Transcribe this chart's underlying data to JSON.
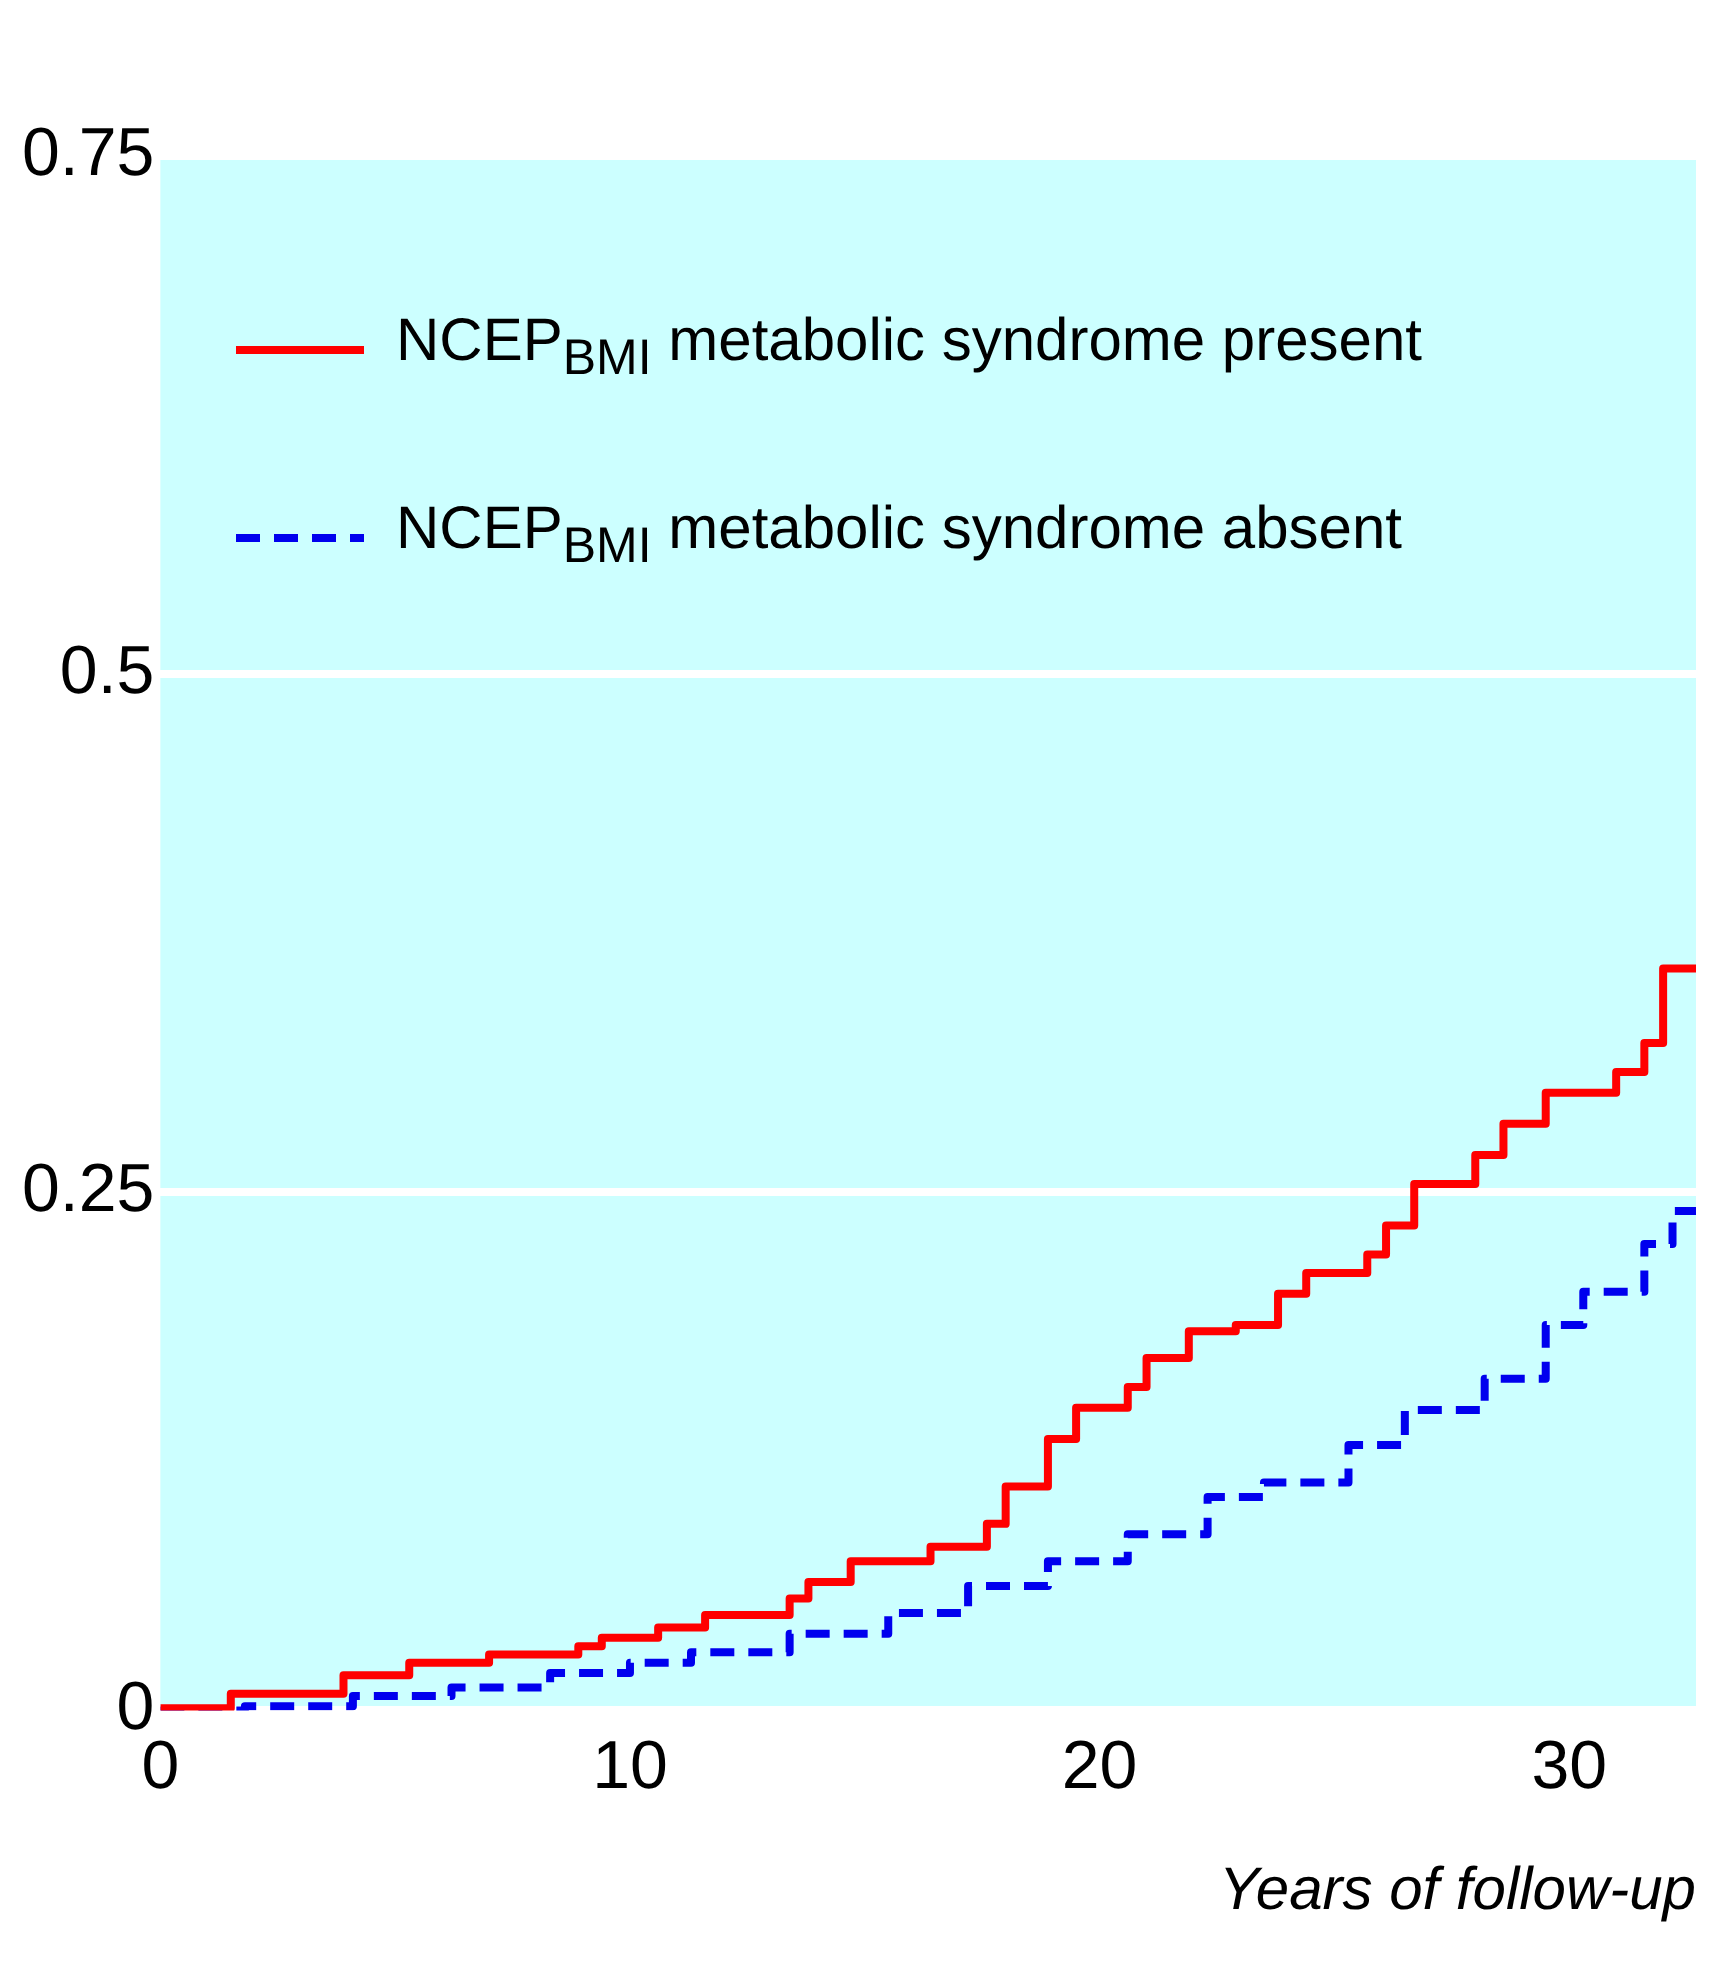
{
  "chart_data": {
    "type": "step",
    "xlabel": "Years of follow-up",
    "xlim": [
      0,
      32.7
    ],
    "xticks": [
      0,
      10,
      20,
      30
    ],
    "ylim": [
      0,
      0.75
    ],
    "yticks": [
      0,
      0.25,
      0.5,
      0.75
    ],
    "grid": "y",
    "legend": "top left",
    "series": [
      {
        "name": "NCEP$_{BMI}$ metabolic syndrome present",
        "color": "#ff0000",
        "line_style": "solid",
        "x": [
          0,
          1.5,
          3.9,
          5.3,
          7.0,
          8.9,
          9.4,
          10.6,
          11.6,
          13.4,
          13.8,
          14.7,
          16.4,
          17.6,
          18.0,
          18.9,
          19.5,
          20.6,
          21.0,
          21.9,
          22.9,
          23.8,
          24.4,
          25.7,
          26.1,
          26.7,
          28.0,
          28.6,
          29.5,
          31.0,
          31.6,
          32.0,
          32.7
        ],
        "values": [
          0.001,
          0.008,
          0.017,
          0.023,
          0.027,
          0.031,
          0.035,
          0.04,
          0.046,
          0.054,
          0.062,
          0.072,
          0.079,
          0.09,
          0.108,
          0.131,
          0.146,
          0.156,
          0.17,
          0.183,
          0.186,
          0.201,
          0.211,
          0.22,
          0.234,
          0.254,
          0.268,
          0.283,
          0.298,
          0.308,
          0.322,
          0.358,
          0.358
        ]
      },
      {
        "name": "NCEP$_{BMI}$ metabolic syndrome absent",
        "color": "#0000ee",
        "line_style": "dashed",
        "x": [
          0,
          1.8,
          4.1,
          6.2,
          8.3,
          10.0,
          11.3,
          13.4,
          15.5,
          17.2,
          18.9,
          20.6,
          22.3,
          23.5,
          25.3,
          26.5,
          28.2,
          29.5,
          30.3,
          31.6,
          32.2,
          32.7
        ],
        "values": [
          0,
          0.002,
          0.007,
          0.011,
          0.018,
          0.023,
          0.028,
          0.037,
          0.047,
          0.06,
          0.072,
          0.085,
          0.103,
          0.11,
          0.128,
          0.145,
          0.16,
          0.186,
          0.202,
          0.225,
          0.241,
          0.241
        ]
      }
    ]
  }
}
